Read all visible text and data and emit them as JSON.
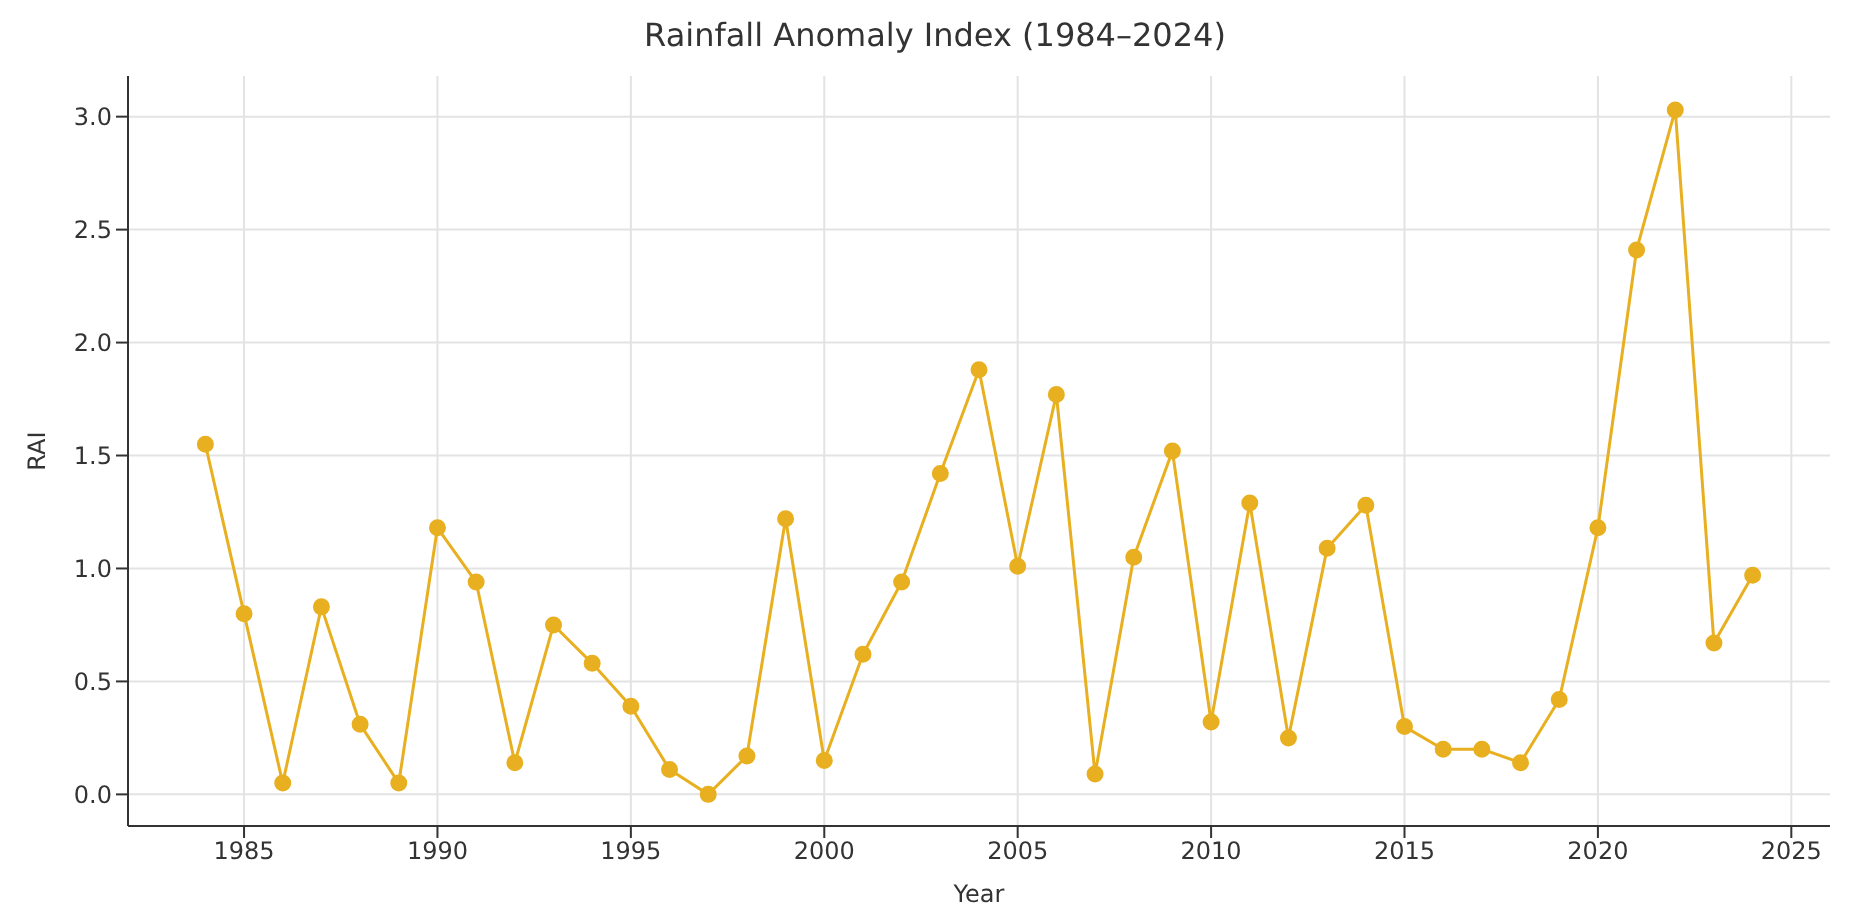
{
  "chart_data": {
    "type": "line",
    "title": "Rainfall Anomaly Index (1984–2024)",
    "xlabel": "Year",
    "ylabel": "RAI",
    "x": [
      1984,
      1985,
      1986,
      1987,
      1988,
      1989,
      1990,
      1991,
      1992,
      1993,
      1994,
      1995,
      1996,
      1997,
      1998,
      1999,
      2000,
      2001,
      2002,
      2003,
      2004,
      2005,
      2006,
      2007,
      2008,
      2009,
      2010,
      2011,
      2012,
      2013,
      2014,
      2015,
      2016,
      2017,
      2018,
      2019,
      2020,
      2021,
      2022,
      2023,
      2024
    ],
    "series": [
      {
        "color": "#e8b020",
        "values": [
          1.55,
          0.8,
          0.05,
          0.83,
          0.31,
          0.05,
          1.18,
          0.94,
          0.14,
          0.75,
          0.58,
          0.39,
          0.11,
          0.0,
          0.17,
          1.22,
          0.15,
          0.62,
          0.94,
          1.42,
          1.88,
          1.01,
          1.77,
          0.09,
          1.05,
          1.52,
          0.32,
          1.29,
          0.25,
          1.09,
          1.28,
          0.3,
          0.2,
          0.2,
          0.14,
          0.42,
          1.18,
          2.41,
          3.03,
          0.67,
          0.97
        ]
      }
    ],
    "xlim": [
      1982,
      2026
    ],
    "xticks": [
      1985,
      1990,
      1995,
      2000,
      2005,
      2010,
      2015,
      2020,
      2025
    ],
    "ylim": [
      -0.14,
      3.18
    ],
    "yticks": [
      {
        "value": 0,
        "label": "0.0"
      },
      {
        "value": 0.5,
        "label": "0.5"
      },
      {
        "value": 1,
        "label": "1.0"
      },
      {
        "value": 1.5,
        "label": "1.5"
      },
      {
        "value": 2,
        "label": "2.0"
      },
      {
        "value": 2.5,
        "label": "2.5"
      },
      {
        "value": 3,
        "label": "3.0"
      }
    ],
    "grid": true,
    "marker": "circle",
    "line_style": "solid"
  }
}
